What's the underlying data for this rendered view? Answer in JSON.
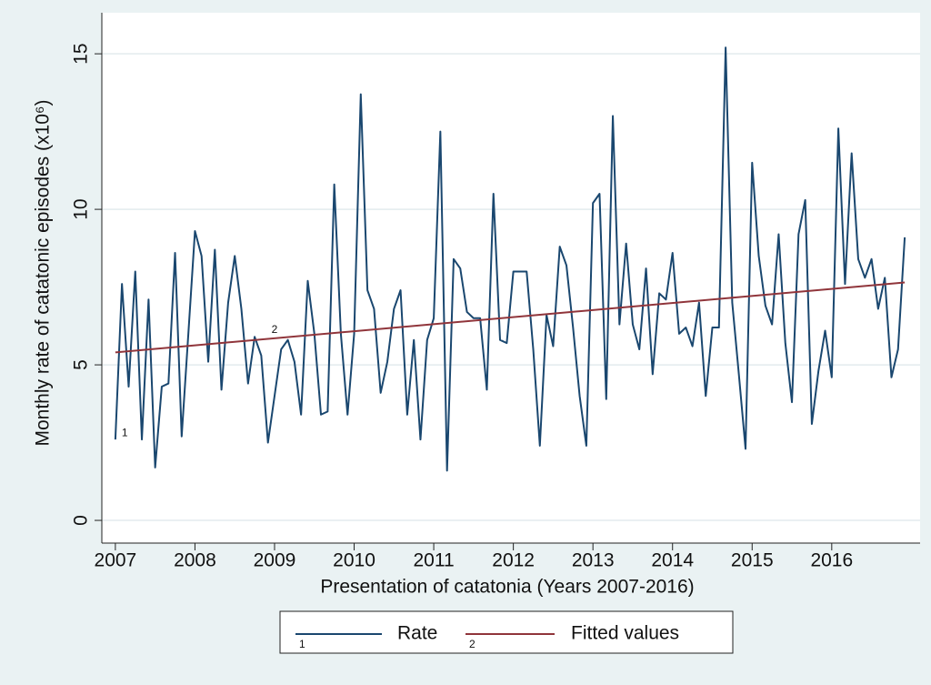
{
  "chart_data": {
    "type": "line",
    "x_label": "Presentation of catatonia (Years 2007-2016)",
    "y_label": "Monthly rate of catatonic episodes (x10⁶)",
    "x": [
      2007,
      2007.083,
      2007.167,
      2007.25,
      2007.333,
      2007.417,
      2007.5,
      2007.583,
      2007.667,
      2007.75,
      2007.833,
      2007.917,
      2008,
      2008.083,
      2008.167,
      2008.25,
      2008.333,
      2008.417,
      2008.5,
      2008.583,
      2008.667,
      2008.75,
      2008.833,
      2008.917,
      2009,
      2009.083,
      2009.167,
      2009.25,
      2009.333,
      2009.417,
      2009.5,
      2009.583,
      2009.667,
      2009.75,
      2009.833,
      2009.917,
      2010,
      2010.083,
      2010.167,
      2010.25,
      2010.333,
      2010.417,
      2010.5,
      2010.583,
      2010.667,
      2010.75,
      2010.833,
      2010.917,
      2011,
      2011.083,
      2011.167,
      2011.25,
      2011.333,
      2011.417,
      2011.5,
      2011.583,
      2011.667,
      2011.75,
      2011.833,
      2011.917,
      2012,
      2012.083,
      2012.167,
      2012.25,
      2012.333,
      2012.417,
      2012.5,
      2012.583,
      2012.667,
      2012.75,
      2012.833,
      2012.917,
      2013,
      2013.083,
      2013.167,
      2013.25,
      2013.333,
      2013.417,
      2013.5,
      2013.583,
      2013.667,
      2013.75,
      2013.833,
      2013.917,
      2014,
      2014.083,
      2014.167,
      2014.25,
      2014.333,
      2014.417,
      2014.5,
      2014.583,
      2014.667,
      2014.75,
      2014.833,
      2014.917,
      2015,
      2015.083,
      2015.167,
      2015.25,
      2015.333,
      2015.417,
      2015.5,
      2015.583,
      2015.667,
      2015.75,
      2015.833,
      2015.917,
      2016,
      2016.083,
      2016.167,
      2016.25,
      2016.333,
      2016.417,
      2016.5,
      2016.583,
      2016.667,
      2016.75,
      2016.833,
      2016.917
    ],
    "series": [
      {
        "name": "Rate",
        "marker_label": "1",
        "color": "#1a476f",
        "values": [
          2.6,
          7.6,
          4.3,
          8.0,
          2.6,
          7.1,
          1.7,
          4.3,
          4.4,
          8.6,
          2.7,
          6.0,
          9.3,
          8.5,
          5.1,
          8.7,
          4.2,
          7.0,
          8.5,
          6.8,
          4.4,
          5.9,
          5.3,
          2.5,
          4.0,
          5.5,
          5.8,
          5.1,
          3.4,
          7.7,
          6.0,
          3.4,
          3.5,
          10.8,
          6.0,
          3.4,
          6.0,
          13.7,
          7.4,
          6.8,
          4.1,
          5.1,
          6.8,
          7.4,
          3.4,
          5.8,
          2.6,
          5.8,
          6.5,
          12.5,
          1.6,
          8.4,
          8.1,
          6.7,
          6.5,
          6.5,
          4.2,
          10.5,
          5.8,
          5.7,
          8.0,
          8.0,
          8.0,
          5.5,
          2.4,
          6.6,
          5.6,
          8.8,
          8.2,
          6.2,
          4.0,
          2.4,
          10.2,
          10.5,
          3.9,
          13.0,
          6.3,
          8.9,
          6.3,
          5.5,
          8.1,
          4.7,
          7.3,
          7.1,
          8.6,
          6.0,
          6.2,
          5.6,
          7.0,
          4.0,
          6.2,
          6.2,
          15.2,
          7.0,
          4.7,
          2.3,
          11.5,
          8.5,
          6.9,
          6.3,
          9.2,
          5.7,
          3.8,
          9.2,
          10.3,
          3.1,
          4.8,
          6.1,
          4.6,
          12.6,
          7.6,
          11.8,
          8.4,
          7.8,
          8.4,
          6.8,
          7.8,
          4.6,
          5.5,
          9.1
        ]
      },
      {
        "name": "Fitted values",
        "marker_label": "2",
        "color": "#90353b",
        "x": [
          2007,
          2016.917
        ],
        "values": [
          5.4,
          7.65
        ]
      }
    ],
    "xlim": [
      2006.83,
      2017.11
    ],
    "xticks": [
      2007,
      2008,
      2009,
      2010,
      2011,
      2012,
      2013,
      2014,
      2015,
      2016
    ],
    "ylim": [
      -0.73,
      16.32
    ],
    "yticks": [
      0,
      5,
      10,
      15
    ],
    "grid": true,
    "legend": "bottom"
  }
}
